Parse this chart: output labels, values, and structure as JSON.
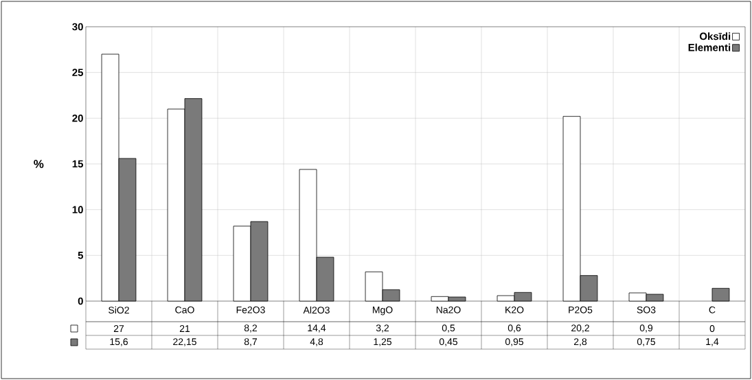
{
  "chart_data": {
    "type": "bar",
    "ylabel": "%",
    "categories": [
      "SiO2",
      "CaO",
      "Fe2O3",
      "Al2O3",
      "MgO",
      "Na2O",
      "K2O",
      "P2O5",
      "SO3",
      "C"
    ],
    "series": [
      {
        "name": "Oksīdi",
        "color": "#ffffff",
        "values": [
          27,
          21,
          8.2,
          14.4,
          3.2,
          0.5,
          0.6,
          20.2,
          0.9,
          0
        ],
        "value_labels": [
          "27",
          "21",
          "8,2",
          "14,4",
          "3,2",
          "0,5",
          "0,6",
          "20,2",
          "0,9",
          "0"
        ]
      },
      {
        "name": "Elementi",
        "color": "#7a7a7a",
        "values": [
          15.6,
          22.15,
          8.7,
          4.8,
          1.25,
          0.45,
          0.95,
          2.8,
          0.75,
          1.4
        ],
        "value_labels": [
          "15,6",
          "22,15",
          "8,7",
          "4,8",
          "1,25",
          "0,45",
          "0,95",
          "2,8",
          "0,75",
          "1,4"
        ]
      }
    ],
    "ylim": [
      0,
      30
    ],
    "yticks": [
      0,
      5,
      10,
      15,
      20,
      25,
      30
    ],
    "grid": true,
    "legend": "top right"
  }
}
